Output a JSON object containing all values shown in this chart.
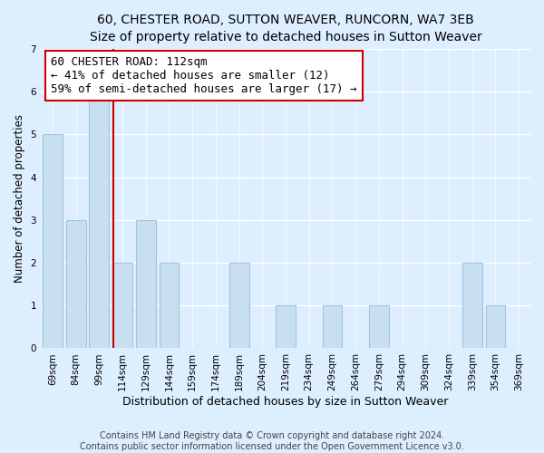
{
  "title": "60, CHESTER ROAD, SUTTON WEAVER, RUNCORN, WA7 3EB",
  "subtitle": "Size of property relative to detached houses in Sutton Weaver",
  "xlabel": "Distribution of detached houses by size in Sutton Weaver",
  "ylabel": "Number of detached properties",
  "categories": [
    "69sqm",
    "84sqm",
    "99sqm",
    "114sqm",
    "129sqm",
    "144sqm",
    "159sqm",
    "174sqm",
    "189sqm",
    "204sqm",
    "219sqm",
    "234sqm",
    "249sqm",
    "264sqm",
    "279sqm",
    "294sqm",
    "309sqm",
    "324sqm",
    "339sqm",
    "354sqm",
    "369sqm"
  ],
  "values": [
    5,
    3,
    6,
    2,
    3,
    2,
    0,
    0,
    2,
    0,
    1,
    0,
    1,
    0,
    1,
    0,
    0,
    0,
    2,
    1,
    0
  ],
  "bar_color": "#c8dff0",
  "bar_edge_color": "#a0c4e0",
  "vline_x": 2.6,
  "vline_color": "#cc0000",
  "annotation_line1": "60 CHESTER ROAD: 112sqm",
  "annotation_line2": "← 41% of detached houses are smaller (12)",
  "annotation_line3": "59% of semi-detached houses are larger (17) →",
  "annotation_box_color": "#ffffff",
  "annotation_box_edge": "#cc0000",
  "ylim": [
    0,
    7
  ],
  "yticks": [
    0,
    1,
    2,
    3,
    4,
    5,
    6,
    7
  ],
  "footer1": "Contains HM Land Registry data © Crown copyright and database right 2024.",
  "footer2": "Contains public sector information licensed under the Open Government Licence v3.0.",
  "bg_color": "#ddeeff",
  "plot_bg_color": "#ddeeff",
  "title_fontsize": 10,
  "subtitle_fontsize": 9,
  "xlabel_fontsize": 9,
  "ylabel_fontsize": 8.5,
  "tick_fontsize": 7.5,
  "annotation_fontsize": 9,
  "footer_fontsize": 7
}
